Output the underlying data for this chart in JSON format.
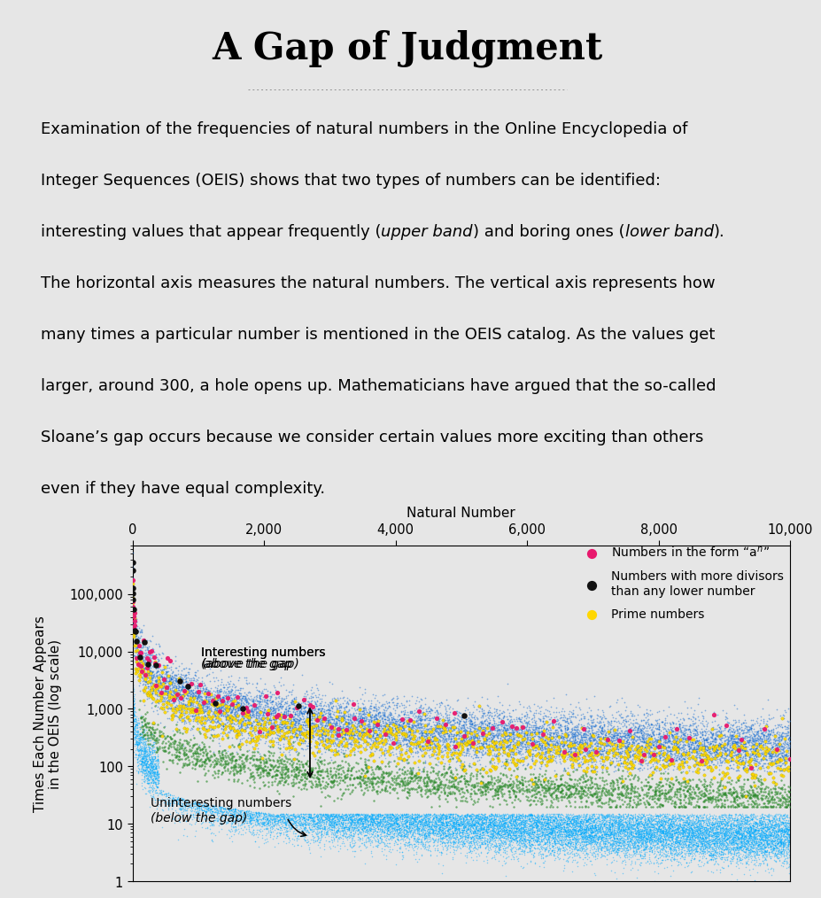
{
  "title": "A Gap of Judgment",
  "bg_color": "#e6e6e6",
  "plot_bg_color": "#e6e6e6",
  "xlabel": "Natural Number",
  "ylabel": "Times Each Number Appears\nin the OEIS (log scale)",
  "xlim": [
    0,
    10000
  ],
  "xticks": [
    0,
    2000,
    4000,
    6000,
    8000,
    10000
  ],
  "xtick_labels": [
    "0",
    "2,000",
    "4,000",
    "6,000",
    "8,000",
    "10,000"
  ],
  "yticks": [
    1,
    10,
    100,
    1000,
    10000,
    100000
  ],
  "ytick_labels": [
    "1",
    "10",
    "100",
    "1,000",
    "10,000",
    "100,000"
  ],
  "color_blue_dark": "#1a6fd4",
  "color_cyan": "#00aaff",
  "color_green": "#2d8a2d",
  "color_yellow": "#FFD700",
  "color_magenta": "#e8186d",
  "color_black": "#111111",
  "title_fontsize": 30,
  "body_fontsize": 13,
  "axis_label_fontsize": 11,
  "tick_label_fontsize": 10.5
}
